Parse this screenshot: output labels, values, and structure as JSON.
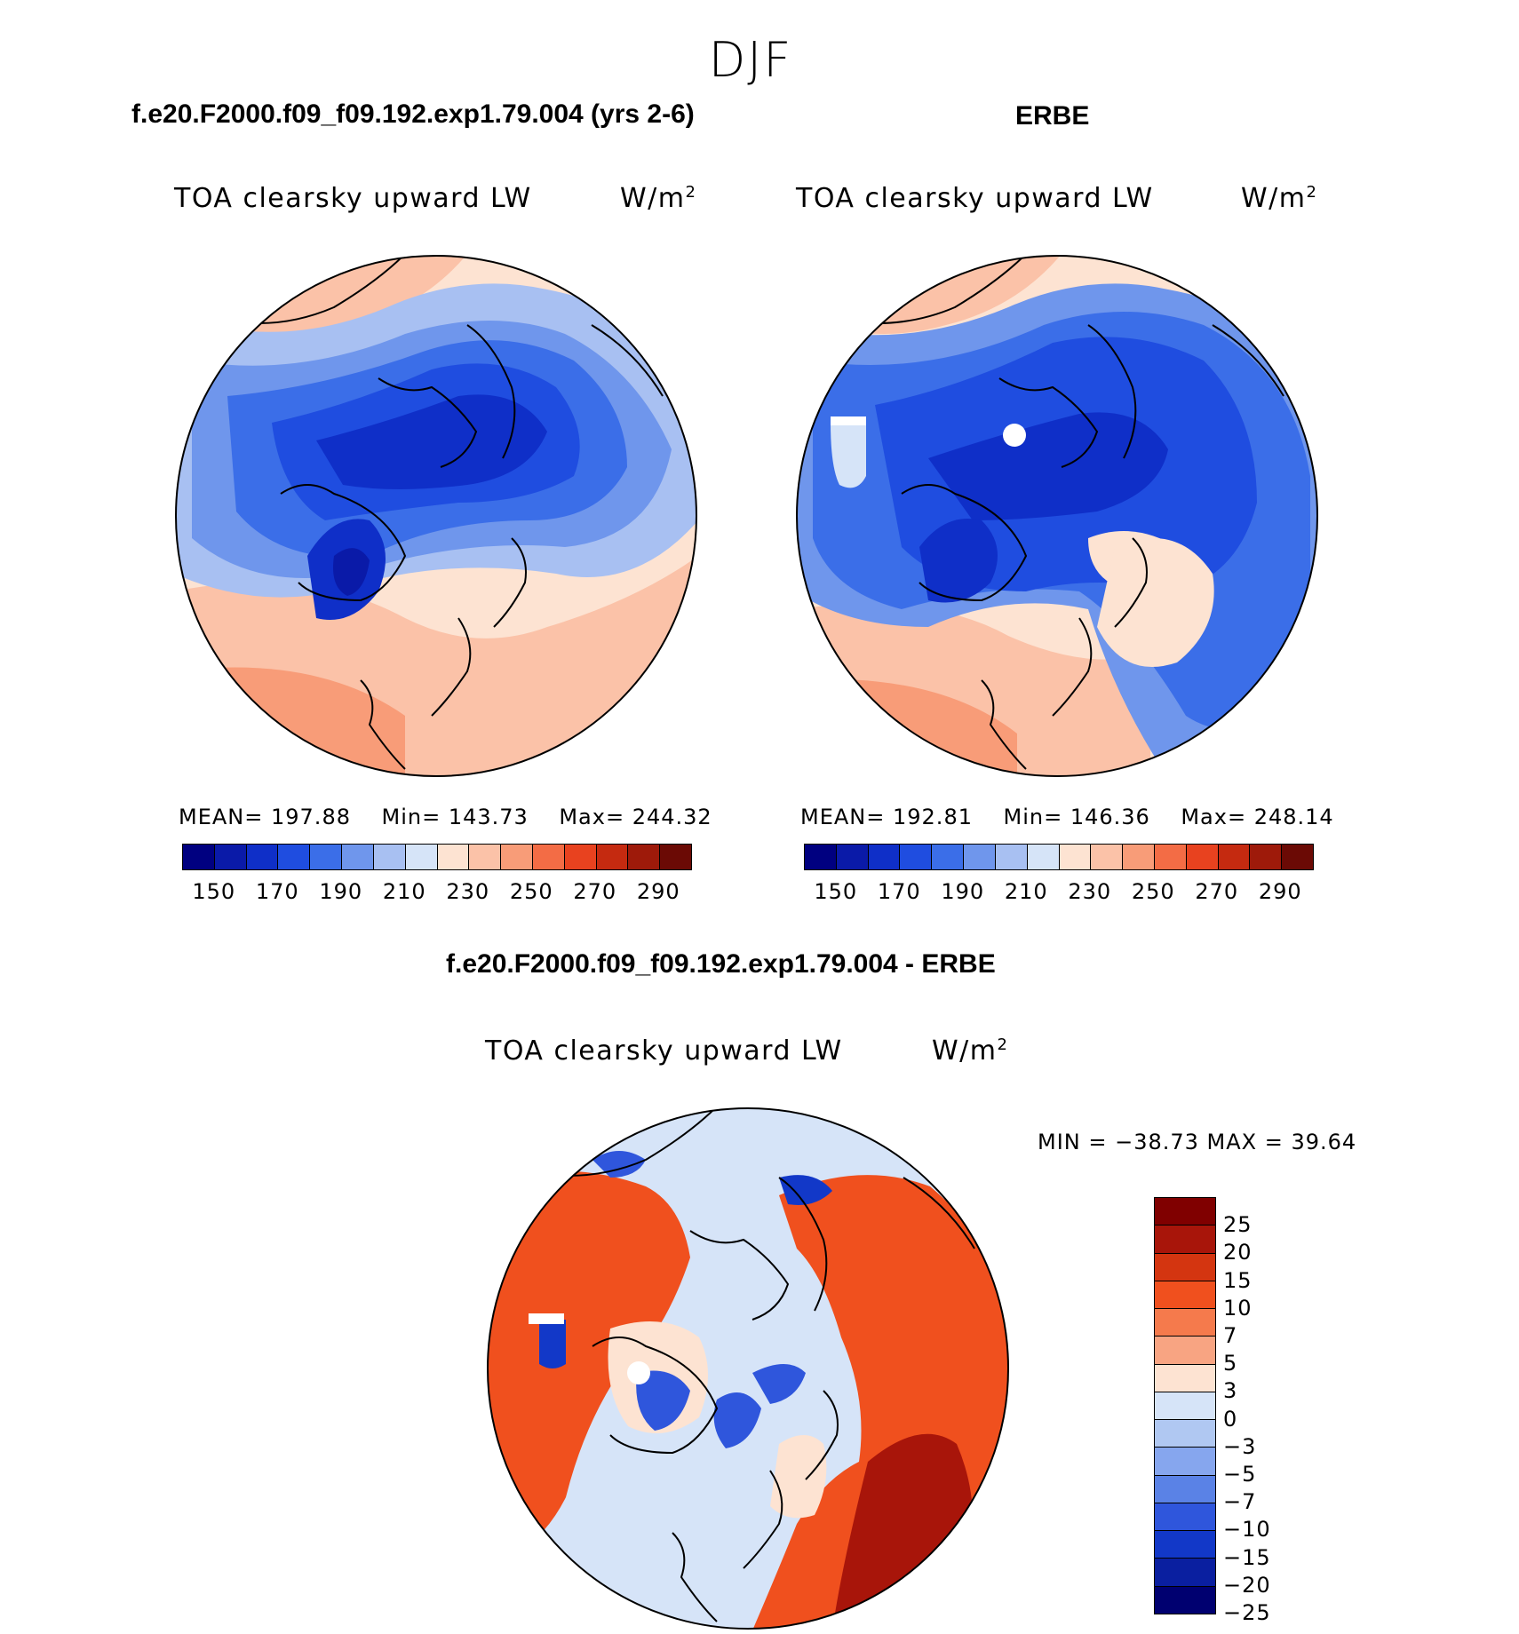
{
  "season": "DJF",
  "panels": {
    "model": {
      "header": "f.e20.F2000.f09_f09.192.exp1.79.004 (yrs 2-6)",
      "subtitle": "TOA clearsky upward LW",
      "unit": "W/m",
      "unit_exp": "2",
      "stats": {
        "mean_label": "MEAN=",
        "mean": "197.88",
        "min_label": "Min=",
        "min": "143.73",
        "max_label": "Max=",
        "max": "244.32"
      }
    },
    "obs": {
      "header": "ERBE",
      "subtitle": "TOA clearsky upward LW",
      "unit": "W/m",
      "unit_exp": "2",
      "stats": {
        "mean_label": "MEAN=",
        "mean": "192.81",
        "min_label": "Min=",
        "min": "146.36",
        "max_label": "Max=",
        "max": "248.14"
      }
    },
    "diff": {
      "header": "f.e20.F2000.f09_f09.192.exp1.79.004 - ERBE",
      "subtitle": "TOA clearsky upward LW",
      "unit": "W/m",
      "unit_exp": "2",
      "stats": {
        "text": "MIN = −38.73 MAX =  39.64"
      }
    }
  },
  "colorbar_abs": {
    "colors": [
      "#000080",
      "#0a1aa8",
      "#0f2fc8",
      "#1f4de0",
      "#3b6ee8",
      "#6f96ec",
      "#a8c0f2",
      "#d6e4f8",
      "#fde3d2",
      "#fbc2a8",
      "#f89c78",
      "#f36c45",
      "#e8421f",
      "#c52a10",
      "#9e1a0a",
      "#6b0a05"
    ],
    "ticks": [
      "150",
      "170",
      "190",
      "210",
      "230",
      "250",
      "270",
      "290"
    ]
  },
  "colorbar_diff": {
    "colors": [
      "#800000",
      "#a8150a",
      "#d43510",
      "#f0501e",
      "#f57a4c",
      "#f8a482",
      "#fde3d2",
      "#d6e4f8",
      "#b0c8f2",
      "#86a6ee",
      "#5a82e6",
      "#2f56dc",
      "#1238c8",
      "#0a1fa0",
      "#000070"
    ],
    "ticks": [
      "25",
      "20",
      "15",
      "10",
      "7",
      "5",
      "3",
      "0",
      "−3",
      "−5",
      "−7",
      "−10",
      "−15",
      "−20",
      "−25"
    ]
  }
}
